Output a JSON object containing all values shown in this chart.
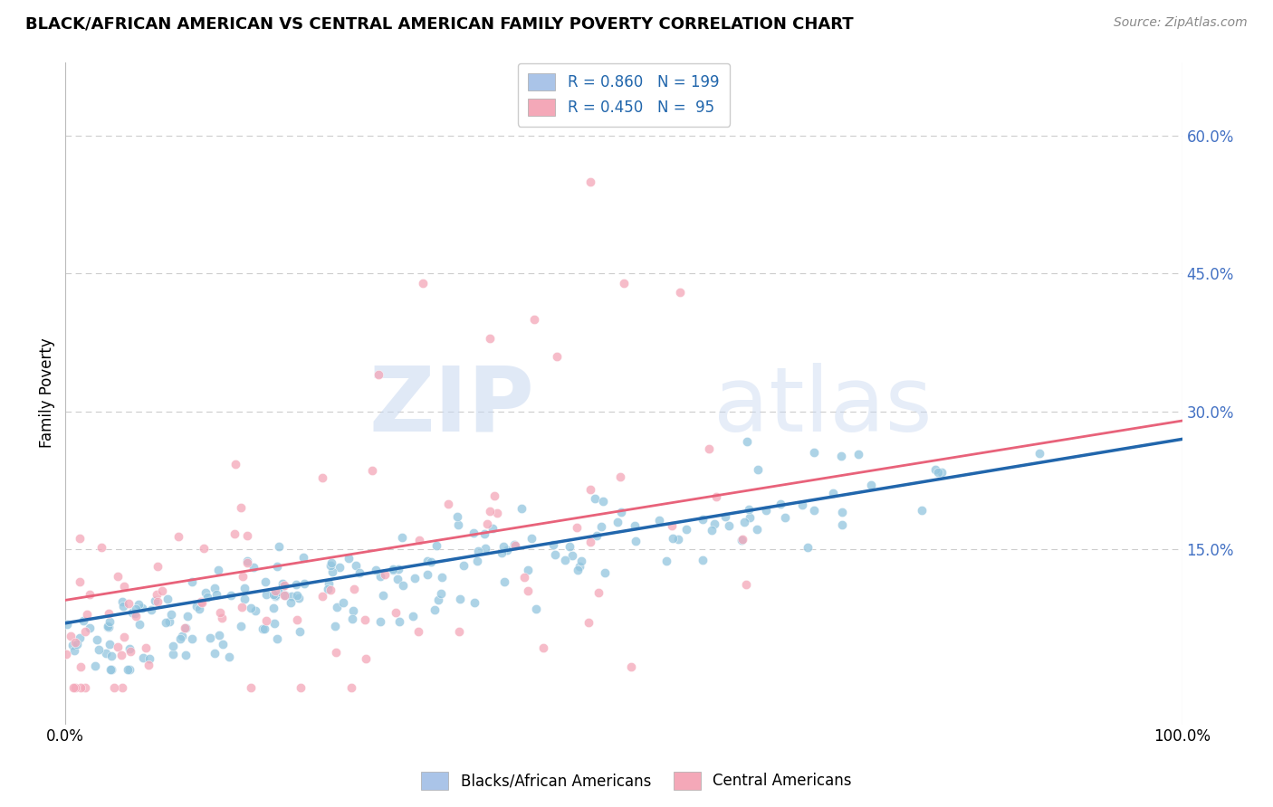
{
  "title": "BLACK/AFRICAN AMERICAN VS CENTRAL AMERICAN FAMILY POVERTY CORRELATION CHART",
  "source": "Source: ZipAtlas.com",
  "ylabel": "Family Poverty",
  "ytick_values": [
    0.15,
    0.3,
    0.45,
    0.6
  ],
  "xlim": [
    0.0,
    1.0
  ],
  "ylim": [
    -0.04,
    0.68
  ],
  "blue_color": "#92c5de",
  "pink_color": "#f4a6b8",
  "blue_line_color": "#2166ac",
  "pink_line_color": "#e8627a",
  "blue_R": 0.86,
  "blue_N": 199,
  "pink_R": 0.45,
  "pink_N": 95,
  "watermark_zip": "ZIP",
  "watermark_atlas": "atlas",
  "background_color": "#ffffff",
  "grid_color": "#cccccc",
  "legend1_label": "R = 0.860   N = 199",
  "legend2_label": "R = 0.450   N =  95",
  "bottom_label1": "Blacks/African Americans",
  "bottom_label2": "Central Americans",
  "blue_legend_color": "#aac4e8",
  "pink_legend_color": "#f4a8b8",
  "right_tick_color": "#4472c4"
}
